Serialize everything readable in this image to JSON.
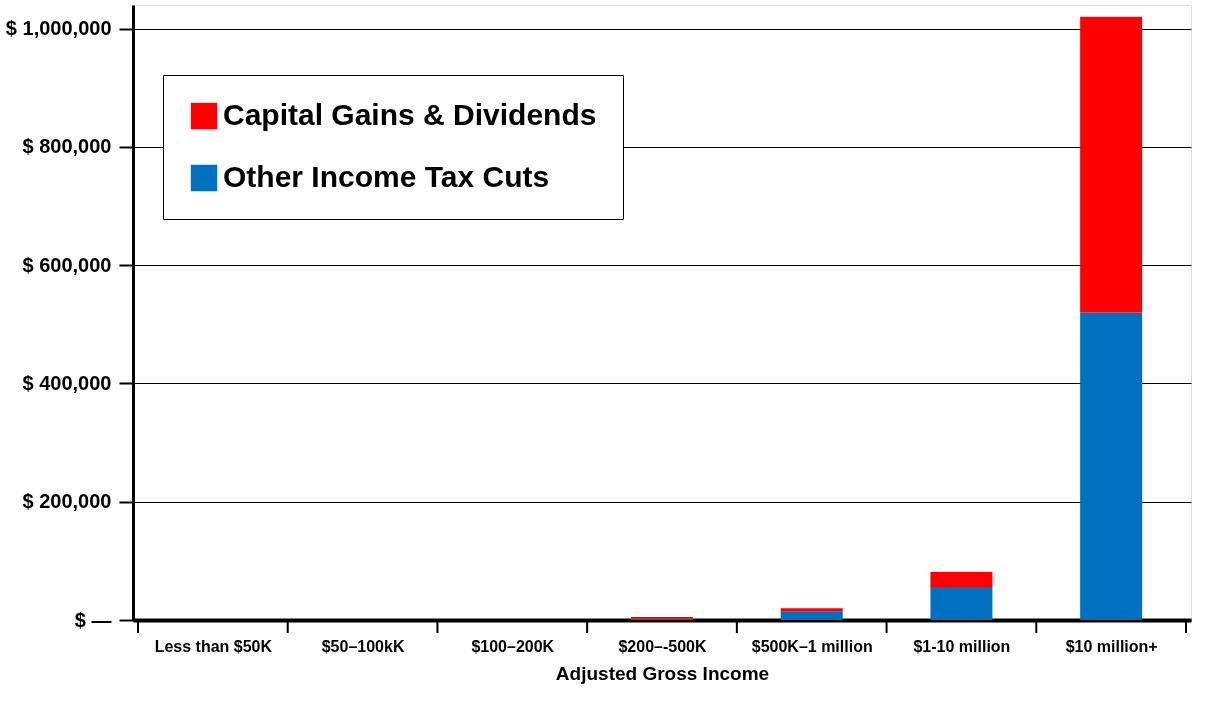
{
  "chart_data": {
    "type": "bar",
    "stacked": true,
    "xlabel": "Adjusted Gross Income",
    "categories": [
      "Less than $50K",
      "$50–100kK",
      "$100–200K",
      "$200–-500K",
      "$500K–1 million",
      "$1-10 million",
      "$10 million+"
    ],
    "series": [
      {
        "name": "Other Income Tax Cuts",
        "color": "#0070c0",
        "values": [
          0,
          0,
          0,
          2000,
          14000,
          56000,
          520000
        ]
      },
      {
        "name": "Capital Gains & Dividends",
        "color": "#ff0000",
        "values": [
          0,
          0,
          0,
          3000,
          6000,
          25000,
          500000
        ]
      }
    ],
    "ylim": [
      0,
      1040000
    ],
    "yticks": [
      {
        "value": 0,
        "label": "$  —"
      },
      {
        "value": 200000,
        "label": "$ 200,000"
      },
      {
        "value": 400000,
        "label": "$ 400,000"
      },
      {
        "value": 600000,
        "label": "$ 600,000"
      },
      {
        "value": 800000,
        "label": "$ 800,000"
      },
      {
        "value": 1000000,
        "label": "$ 1,000,000"
      }
    ],
    "grid": "y",
    "legend": "top left"
  }
}
